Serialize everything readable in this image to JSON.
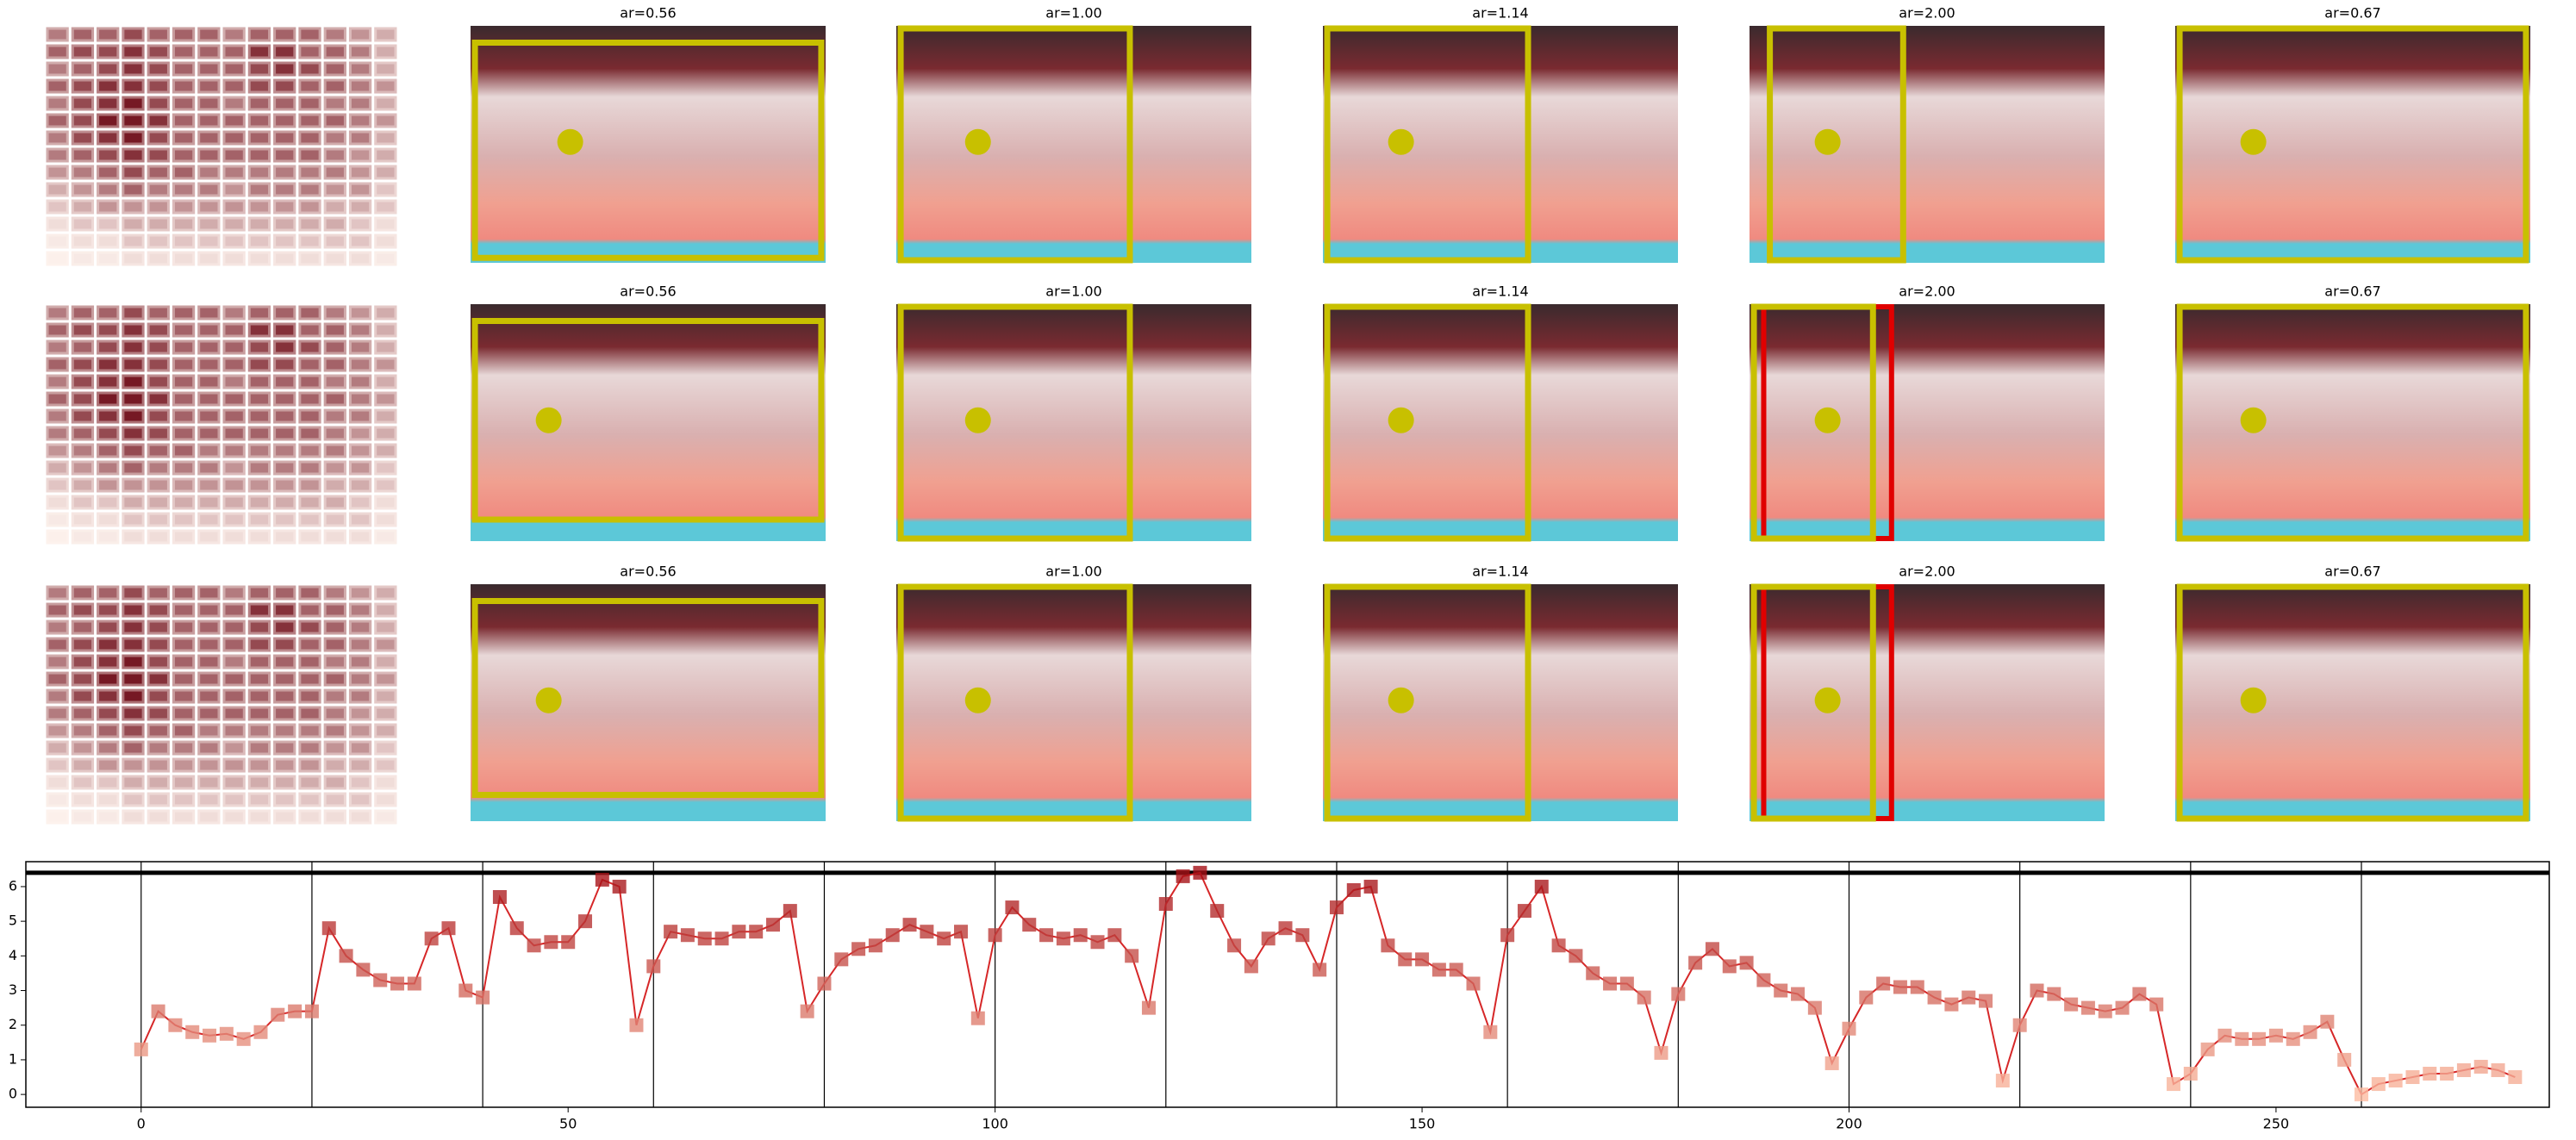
{
  "heatmap": {
    "values": [
      [
        0.5,
        0.6,
        0.6,
        0.7,
        0.6,
        0.6,
        0.6,
        0.5,
        0.6,
        0.6,
        0.6,
        0.5,
        0.4,
        0.3
      ],
      [
        0.6,
        0.7,
        0.7,
        0.8,
        0.7,
        0.6,
        0.6,
        0.6,
        0.8,
        0.8,
        0.6,
        0.6,
        0.5,
        0.3
      ],
      [
        0.5,
        0.6,
        0.7,
        0.8,
        0.7,
        0.6,
        0.6,
        0.6,
        0.7,
        0.8,
        0.7,
        0.6,
        0.5,
        0.3
      ],
      [
        0.6,
        0.7,
        0.8,
        0.8,
        0.7,
        0.6,
        0.6,
        0.6,
        0.7,
        0.7,
        0.6,
        0.6,
        0.5,
        0.4
      ],
      [
        0.5,
        0.7,
        0.8,
        0.9,
        0.7,
        0.6,
        0.6,
        0.5,
        0.6,
        0.6,
        0.6,
        0.5,
        0.5,
        0.3
      ],
      [
        0.6,
        0.7,
        0.9,
        0.9,
        0.8,
        0.6,
        0.6,
        0.6,
        0.6,
        0.6,
        0.6,
        0.6,
        0.5,
        0.4
      ],
      [
        0.5,
        0.7,
        0.8,
        0.9,
        0.7,
        0.6,
        0.6,
        0.6,
        0.6,
        0.6,
        0.6,
        0.5,
        0.5,
        0.3
      ],
      [
        0.5,
        0.6,
        0.7,
        0.8,
        0.7,
        0.6,
        0.6,
        0.6,
        0.6,
        0.6,
        0.6,
        0.5,
        0.4,
        0.3
      ],
      [
        0.4,
        0.5,
        0.6,
        0.7,
        0.6,
        0.6,
        0.5,
        0.5,
        0.5,
        0.5,
        0.5,
        0.5,
        0.4,
        0.3
      ],
      [
        0.3,
        0.4,
        0.5,
        0.6,
        0.5,
        0.5,
        0.5,
        0.4,
        0.5,
        0.5,
        0.5,
        0.4,
        0.4,
        0.2
      ],
      [
        0.2,
        0.3,
        0.4,
        0.4,
        0.4,
        0.4,
        0.4,
        0.4,
        0.4,
        0.4,
        0.4,
        0.3,
        0.3,
        0.2
      ],
      [
        0.1,
        0.2,
        0.2,
        0.3,
        0.3,
        0.3,
        0.3,
        0.3,
        0.3,
        0.3,
        0.3,
        0.3,
        0.2,
        0.1
      ],
      [
        0.05,
        0.1,
        0.1,
        0.2,
        0.2,
        0.2,
        0.2,
        0.2,
        0.2,
        0.2,
        0.2,
        0.2,
        0.2,
        0.1
      ],
      [
        0.02,
        0.05,
        0.05,
        0.1,
        0.1,
        0.1,
        0.1,
        0.1,
        0.1,
        0.1,
        0.1,
        0.1,
        0.1,
        0.05
      ]
    ],
    "colors": [
      "#fff5f0",
      "#67000d"
    ]
  },
  "panels": {
    "rows": [
      {
        "titles": [
          "ar=0.56",
          "ar=1.00",
          "ar=1.14",
          "ar=2.00",
          "ar=0.67"
        ]
      },
      {
        "titles": [
          "ar=0.56",
          "ar=1.00",
          "ar=1.14",
          "ar=2.00",
          "ar=0.67"
        ]
      },
      {
        "titles": [
          "ar=0.56",
          "ar=1.00",
          "ar=1.14",
          "ar=2.00",
          "ar=0.67"
        ]
      }
    ]
  },
  "chart_data": {
    "type": "line",
    "x": [
      0,
      2,
      4,
      6,
      8,
      10,
      12,
      14,
      16,
      18,
      20,
      22,
      24,
      26,
      28,
      30,
      32,
      34,
      36,
      38,
      40,
      42,
      44,
      46,
      48,
      50,
      52,
      54,
      56,
      58,
      60,
      62,
      64,
      66,
      68,
      70,
      72,
      74,
      76,
      78,
      80,
      82,
      84,
      86,
      88,
      90,
      92,
      94,
      96,
      98,
      100,
      102,
      104,
      106,
      108,
      110,
      112,
      114,
      116,
      118,
      120,
      122,
      124,
      126,
      128,
      130,
      132,
      134,
      136,
      138,
      140,
      142,
      144,
      146,
      148,
      150,
      152,
      154,
      156,
      158,
      160,
      162,
      164,
      166,
      168,
      170,
      172,
      174,
      176,
      178,
      180,
      182,
      184,
      186,
      188,
      190,
      192,
      194,
      196,
      198,
      200,
      202,
      204,
      206,
      208,
      210,
      212,
      214,
      216,
      218,
      220,
      222,
      224,
      226,
      228,
      230,
      232,
      234,
      236,
      238,
      240,
      242,
      244,
      246,
      248,
      250,
      252,
      254,
      256,
      258,
      260,
      262,
      264,
      266,
      268,
      270,
      272,
      274,
      276,
      278
    ],
    "values": [
      1.3,
      2.4,
      2.0,
      1.8,
      1.7,
      1.75,
      1.6,
      1.8,
      2.3,
      2.4,
      2.4,
      4.8,
      4.0,
      3.6,
      3.3,
      3.2,
      3.2,
      4.5,
      4.8,
      3.0,
      2.8,
      5.7,
      4.8,
      4.3,
      4.4,
      4.4,
      5.0,
      6.2,
      6.0,
      2.0,
      3.7,
      4.7,
      4.6,
      4.5,
      4.5,
      4.7,
      4.7,
      4.9,
      5.3,
      2.4,
      3.2,
      3.9,
      4.2,
      4.3,
      4.6,
      4.9,
      4.7,
      4.5,
      4.7,
      2.2,
      4.6,
      5.4,
      4.9,
      4.6,
      4.5,
      4.6,
      4.4,
      4.6,
      4.0,
      2.5,
      5.5,
      6.3,
      6.4,
      5.3,
      4.3,
      3.7,
      4.5,
      4.8,
      4.6,
      3.6,
      5.4,
      5.9,
      6.0,
      4.3,
      3.9,
      3.9,
      3.6,
      3.6,
      3.2,
      1.8,
      4.6,
      5.3,
      6.0,
      4.3,
      4.0,
      3.5,
      3.2,
      3.2,
      2.8,
      1.2,
      2.9,
      3.8,
      4.2,
      3.7,
      3.8,
      3.3,
      3.0,
      2.9,
      2.5,
      0.9,
      1.9,
      2.8,
      3.2,
      3.1,
      3.1,
      2.8,
      2.6,
      2.8,
      2.7,
      0.4,
      2.0,
      3.0,
      2.9,
      2.6,
      2.5,
      2.4,
      2.5,
      2.9,
      2.6,
      0.3,
      0.6,
      1.3,
      1.7,
      1.6,
      1.6,
      1.7,
      1.6,
      1.8,
      2.1,
      1.0,
      0.0,
      0.3,
      0.4,
      0.5,
      0.6,
      0.6,
      0.7,
      0.8,
      0.7,
      0.5
    ],
    "line_color": "#d62728",
    "marker_colors": [
      "#fcbba1",
      "#a50f15"
    ],
    "xlim": [
      -13.5,
      282
    ],
    "ylim": [
      -0.37,
      6.72
    ],
    "xticks": [
      0,
      50,
      100,
      150,
      200,
      250
    ],
    "yticks": [
      0,
      1,
      2,
      3,
      4,
      5,
      6
    ],
    "vlines": [
      0,
      20,
      40,
      60,
      80,
      100,
      120,
      140,
      160,
      180,
      200,
      220,
      240,
      260
    ],
    "hline": 6.4
  }
}
